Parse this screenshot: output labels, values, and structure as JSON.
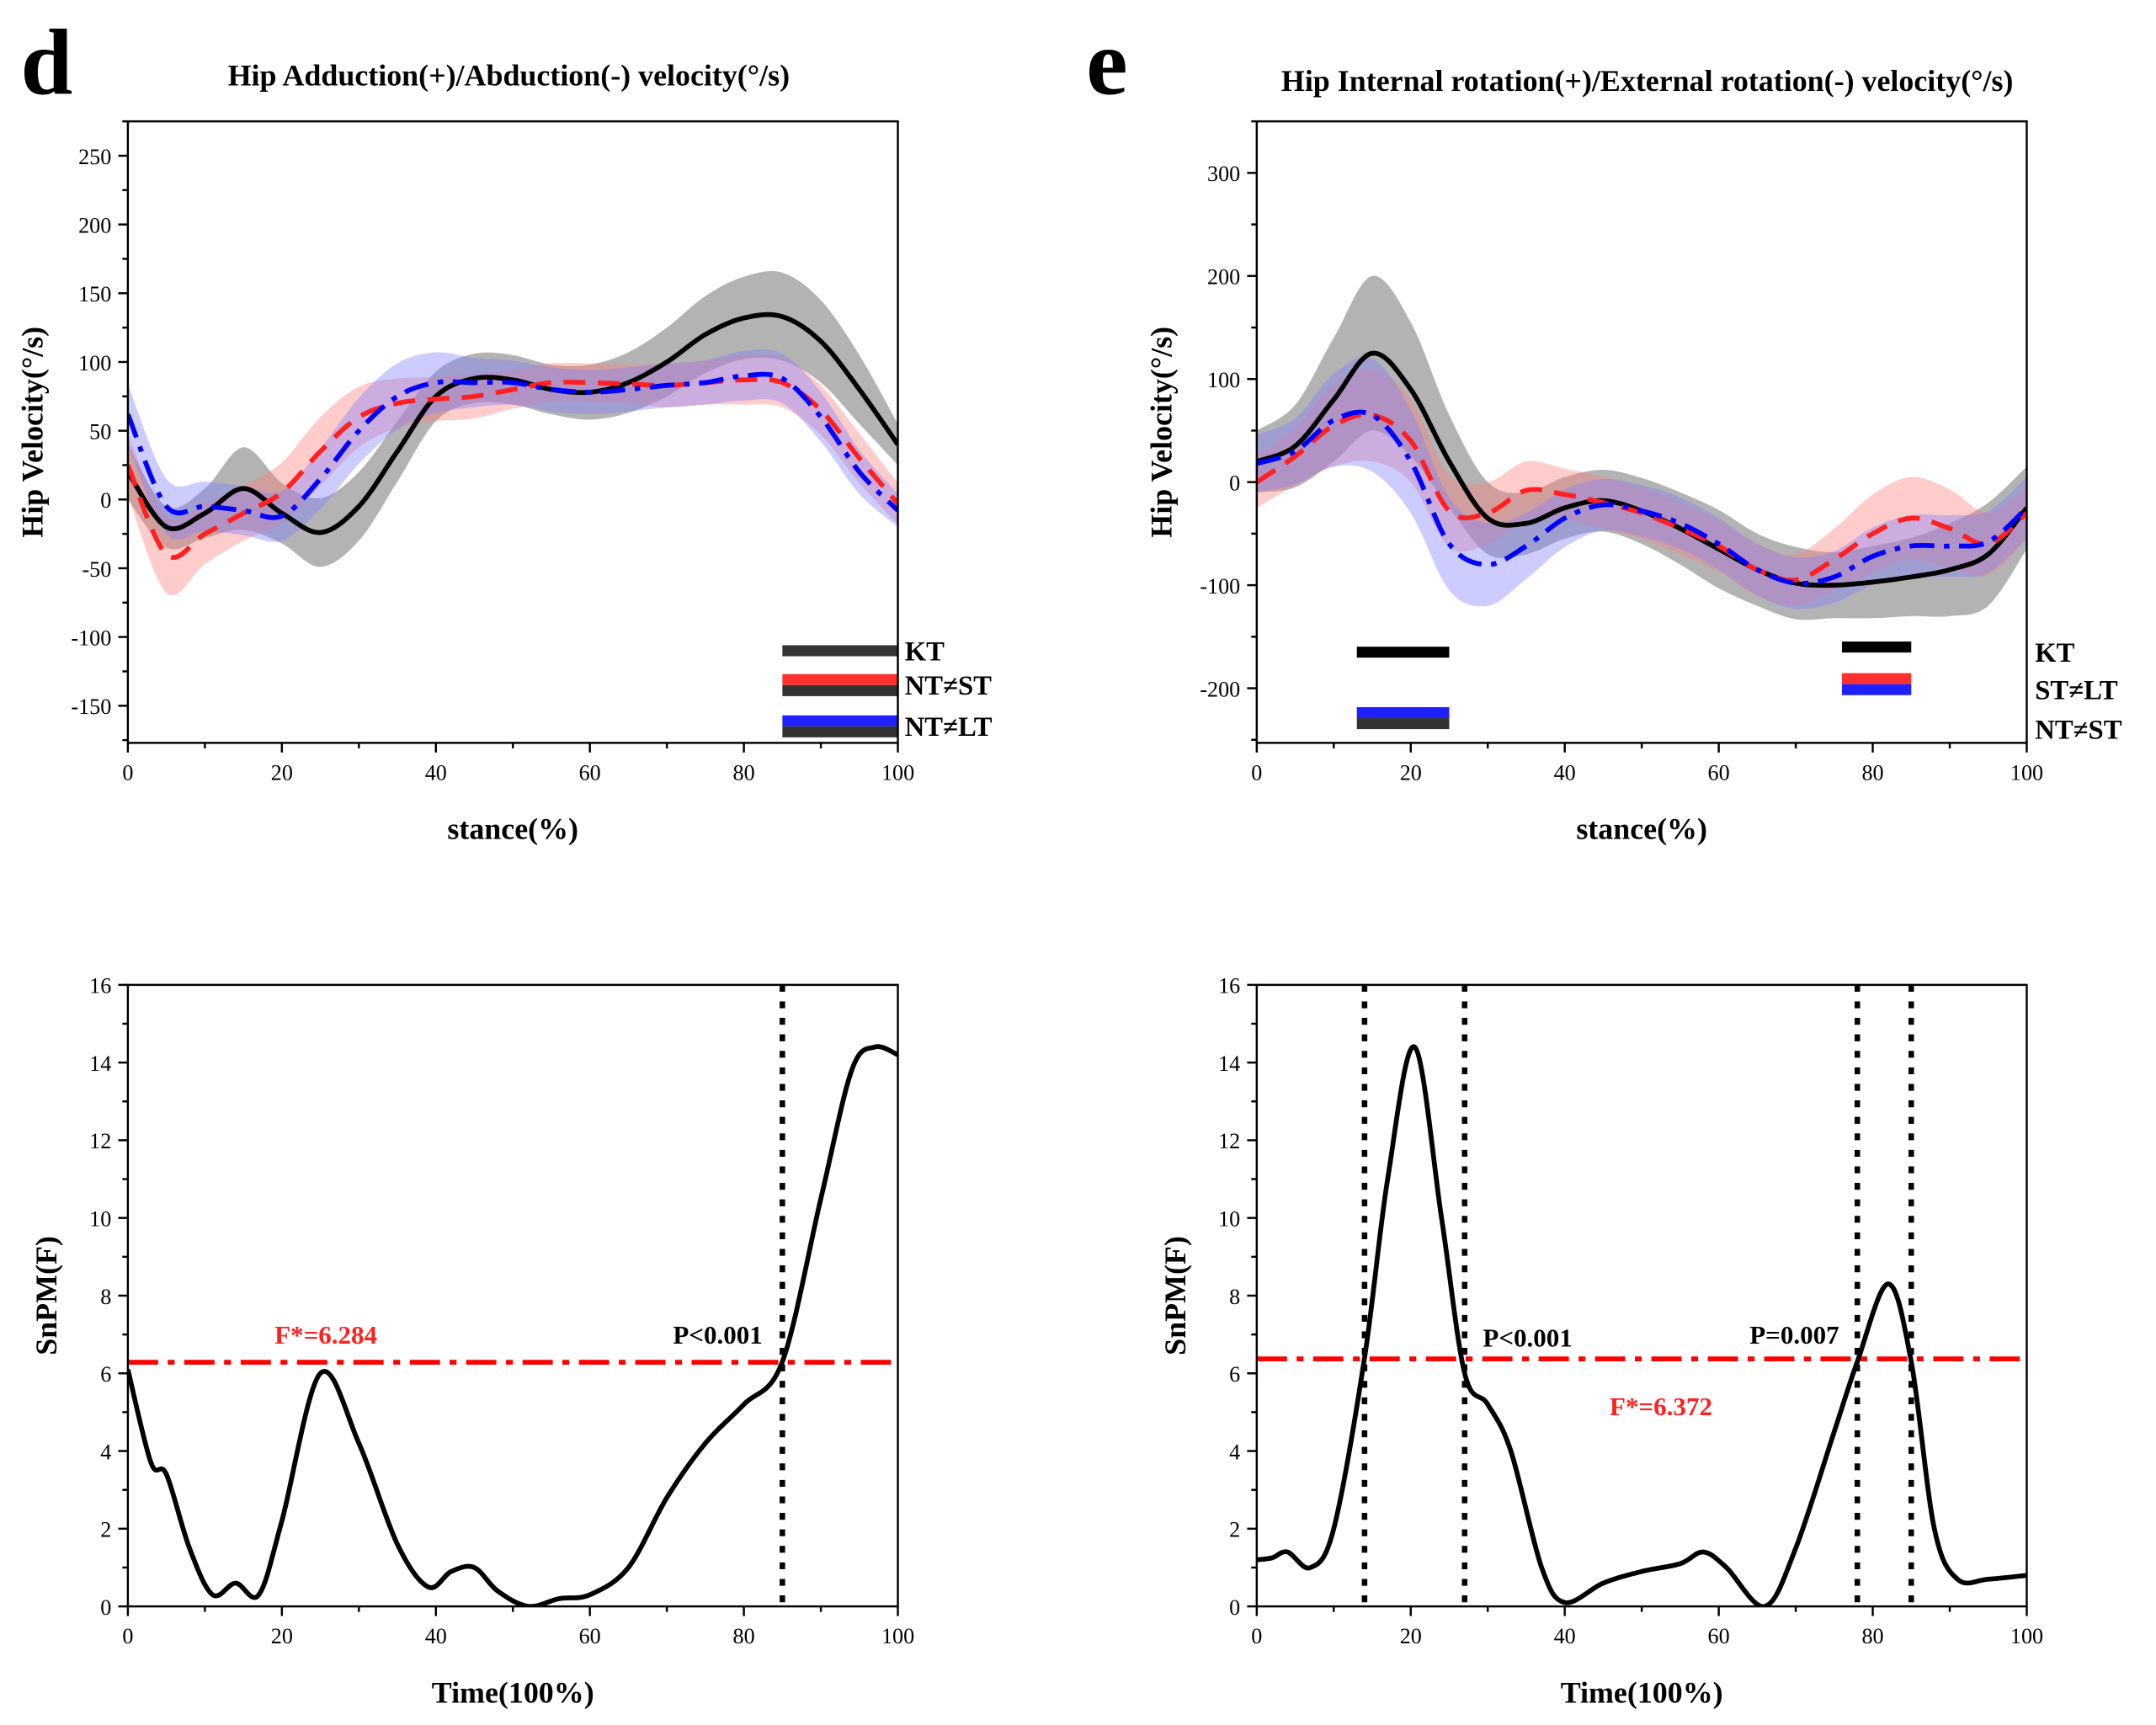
{
  "chart_data": [
    {
      "id": "d-top",
      "panel_letter": "d",
      "type": "line",
      "title": "Hip Adduction(+)/Abduction(-) velocity(°/s)",
      "xlabel": "stance(%)",
      "ylabel": "Hip Velocity(°/s)",
      "xlim": [
        0,
        100
      ],
      "ylim": [
        -177,
        275
      ],
      "xticks": [
        0,
        20,
        40,
        60,
        80,
        100
      ],
      "yticks": [
        -150,
        -100,
        -50,
        0,
        50,
        100,
        150,
        200,
        250
      ],
      "x": [
        0,
        5,
        10,
        15,
        20,
        25,
        30,
        35,
        40,
        45,
        50,
        55,
        60,
        65,
        70,
        75,
        80,
        85,
        90,
        95,
        100
      ],
      "series": [
        {
          "color": "#000000",
          "style": "solid",
          "band_color": "#808080",
          "values": [
            20,
            -20,
            -10,
            8,
            -10,
            -24,
            -5,
            35,
            75,
            88,
            87,
            80,
            78,
            85,
            100,
            120,
            132,
            133,
            115,
            80,
            40
          ],
          "sd": [
            20,
            15,
            18,
            30,
            22,
            25,
            25,
            22,
            18,
            18,
            18,
            18,
            20,
            22,
            25,
            28,
            30,
            32,
            30,
            25,
            15
          ]
        },
        {
          "color": "#ff2020",
          "style": "dashed",
          "band_color": "#ff8080",
          "values": [
            25,
            -40,
            -25,
            -10,
            5,
            35,
            60,
            70,
            73,
            75,
            80,
            85,
            85,
            84,
            83,
            85,
            87,
            85,
            65,
            30,
            -3
          ],
          "sd": [
            22,
            28,
            22,
            20,
            22,
            25,
            22,
            18,
            16,
            16,
            14,
            14,
            14,
            14,
            16,
            16,
            18,
            18,
            18,
            18,
            15
          ]
        },
        {
          "color": "#0000ff",
          "style": "dashdot",
          "band_color": "#8080ff",
          "values": [
            62,
            -5,
            -5,
            -8,
            -12,
            15,
            50,
            75,
            85,
            85,
            85,
            80,
            78,
            80,
            83,
            85,
            90,
            88,
            60,
            20,
            -8
          ],
          "sd": [
            22,
            20,
            18,
            18,
            18,
            22,
            24,
            24,
            22,
            18,
            16,
            16,
            16,
            16,
            16,
            16,
            18,
            18,
            18,
            16,
            12
          ]
        }
      ],
      "significance": [
        {
          "label": "KT",
          "bars": [
            {
              "from": 85,
              "to": 100,
              "y": -110,
              "colors": [
                "#333333"
              ]
            }
          ]
        },
        {
          "label": "NT≠ST",
          "bars": [
            {
              "from": 85,
              "to": 100,
              "y": -135,
              "colors": [
                "#ff3030",
                "#333333"
              ]
            }
          ]
        },
        {
          "label": "NT≠LT",
          "bars": [
            {
              "from": 85,
              "to": 100,
              "y": -165,
              "colors": [
                "#2020ff",
                "#333333"
              ]
            }
          ]
        }
      ]
    },
    {
      "id": "e-top",
      "panel_letter": "e",
      "type": "line",
      "title": "Hip Internal rotation(+)/External rotation(-) velocity(°/s)",
      "xlabel": "stance(%)",
      "ylabel": "Hip Velocity(°/s)",
      "xlim": [
        0,
        100
      ],
      "ylim": [
        -253,
        350
      ],
      "xticks": [
        0,
        20,
        40,
        60,
        80,
        100
      ],
      "yticks": [
        -200,
        -100,
        0,
        100,
        200,
        300
      ],
      "x": [
        0,
        5,
        10,
        15,
        20,
        25,
        30,
        35,
        40,
        45,
        50,
        55,
        60,
        65,
        70,
        75,
        80,
        85,
        90,
        95,
        100
      ],
      "series": [
        {
          "color": "#000000",
          "style": "solid",
          "band_color": "#808080",
          "values": [
            20,
            35,
            80,
            125,
            90,
            20,
            -35,
            -40,
            -25,
            -18,
            -28,
            -45,
            -65,
            -85,
            -98,
            -100,
            -97,
            -92,
            -85,
            -70,
            -25
          ],
          "sd": [
            30,
            40,
            60,
            75,
            65,
            45,
            35,
            30,
            30,
            30,
            32,
            35,
            38,
            35,
            35,
            32,
            35,
            38,
            45,
            50,
            40
          ]
        },
        {
          "color": "#ff2020",
          "style": "dashed",
          "band_color": "#ff8080",
          "values": [
            0,
            25,
            55,
            65,
            40,
            -28,
            -30,
            -8,
            -12,
            -20,
            -30,
            -45,
            -62,
            -85,
            -95,
            -75,
            -50,
            -35,
            -45,
            -60,
            -30
          ],
          "sd": [
            25,
            28,
            40,
            45,
            40,
            35,
            30,
            28,
            25,
            25,
            25,
            25,
            25,
            25,
            25,
            30,
            38,
            40,
            38,
            30,
            25
          ]
        },
        {
          "color": "#0000ff",
          "style": "dashdot",
          "band_color": "#8080ff",
          "values": [
            18,
            30,
            60,
            65,
            20,
            -60,
            -80,
            -62,
            -35,
            -22,
            -28,
            -40,
            -60,
            -85,
            -98,
            -92,
            -72,
            -62,
            -62,
            -58,
            -25
          ],
          "sd": [
            28,
            32,
            45,
            55,
            50,
            45,
            40,
            32,
            28,
            25,
            25,
            25,
            25,
            25,
            25,
            25,
            28,
            30,
            30,
            30,
            30
          ]
        }
      ],
      "significance": [
        {
          "label": "KT",
          "bars": [
            {
              "from": 13,
              "to": 25,
              "y": -165,
              "colors": [
                "#000000"
              ]
            },
            {
              "from": 76,
              "to": 85,
              "y": -160,
              "colors": [
                "#000000"
              ]
            }
          ]
        },
        {
          "label": "ST≠LT",
          "bars": [
            {
              "from": 76,
              "to": 85,
              "y": -196,
              "colors": [
                "#ff3030",
                "#2020ff"
              ]
            }
          ]
        },
        {
          "label": "NT≠ST",
          "bars": [
            {
              "from": 13,
              "to": 25,
              "y": -229,
              "colors": [
                "#2020ff",
                "#333333"
              ]
            }
          ]
        }
      ]
    },
    {
      "id": "d-bottom",
      "type": "line",
      "xlabel": "Time(100%)",
      "ylabel": "SnPM(F)",
      "xlim": [
        0,
        100
      ],
      "ylim": [
        0,
        16
      ],
      "xticks": [
        0,
        20,
        40,
        60,
        80,
        100
      ],
      "yticks": [
        0,
        2,
        4,
        6,
        8,
        10,
        12,
        14,
        16
      ],
      "x": [
        0,
        3,
        5,
        8,
        11,
        14,
        17,
        20,
        25,
        30,
        35,
        39,
        42,
        45,
        48,
        52,
        56,
        60,
        65,
        70,
        75,
        80,
        85,
        90,
        94,
        97,
        100
      ],
      "values": [
        6.1,
        3.7,
        3.4,
        1.5,
        0.3,
        0.6,
        0.3,
        2.2,
        6.0,
        4.2,
        1.6,
        0.5,
        0.9,
        1.0,
        0.4,
        0.0,
        0.2,
        0.3,
        1.0,
        2.8,
        4.2,
        5.2,
        6.3,
        10.5,
        13.8,
        14.4,
        14.2
      ],
      "threshold": 6.284,
      "threshold_label": "F*=6.284",
      "critical_lines": [
        85
      ],
      "annotations": [
        "P<0.001"
      ]
    },
    {
      "id": "e-bottom",
      "type": "line",
      "xlabel": "Time(100%)",
      "ylabel": "SnPM(F)",
      "xlim": [
        0,
        100
      ],
      "ylim": [
        0,
        16
      ],
      "xticks": [
        0,
        20,
        40,
        60,
        80,
        100
      ],
      "yticks": [
        0,
        2,
        4,
        6,
        8,
        10,
        12,
        14,
        16
      ],
      "x": [
        0,
        2,
        4,
        7,
        10,
        14,
        17,
        20.5,
        24,
        27,
        30,
        33,
        37,
        40,
        45,
        50,
        55,
        58,
        61,
        66,
        70,
        75,
        78,
        82,
        85,
        88,
        91,
        95,
        100
      ],
      "values": [
        1.2,
        1.25,
        1.4,
        1.0,
        2.0,
        6.4,
        11.0,
        14.4,
        10.0,
        6.0,
        5.2,
        4.0,
        1.0,
        0.1,
        0.6,
        0.9,
        1.1,
        1.4,
        1.0,
        0.0,
        1.5,
        4.5,
        6.3,
        8.3,
        6.3,
        2.0,
        0.7,
        0.7,
        0.8
      ],
      "threshold": 6.372,
      "threshold_label": "F*=6.372",
      "critical_lines": [
        14,
        27,
        78,
        85
      ],
      "annotations": [
        "P<0.001",
        "P=0.007"
      ]
    }
  ]
}
